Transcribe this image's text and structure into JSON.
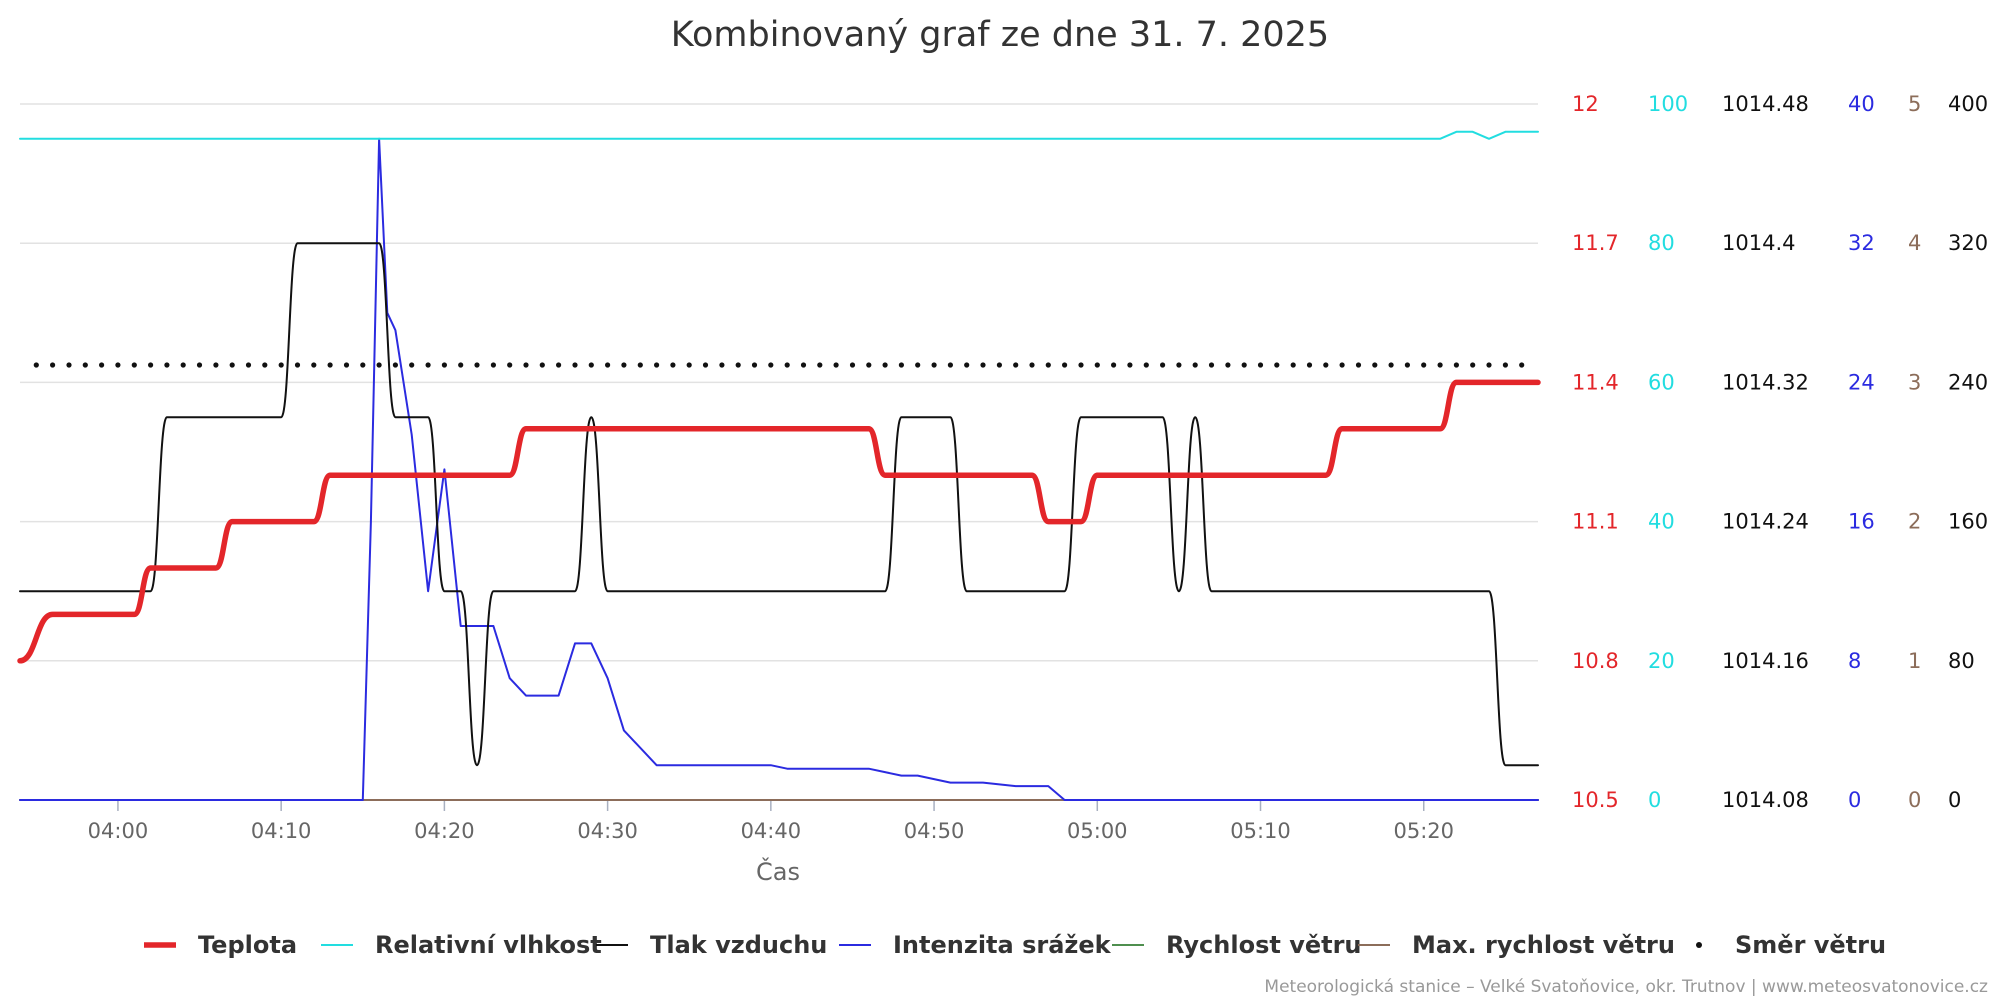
{
  "chart_data": {
    "type": "line",
    "title": "Kombinovaný graf ze dne 31. 7. 2025",
    "xlabel": "Čas",
    "x_ticks": [
      "04:00",
      "04:10",
      "04:20",
      "04:30",
      "04:40",
      "04:50",
      "05:00",
      "05:10",
      "05:20"
    ],
    "x_range_minutes": [
      234,
      327
    ],
    "grid": true,
    "legend_position": "bottom",
    "credits": "Meteorologická stanice – Velké Svatoňovice, okr. Trutnov | www.meteosvatonovice.cz",
    "axes": [
      {
        "name": "temperature",
        "color": "#e3262a",
        "range": [
          10.5,
          12
        ],
        "ticks": [
          "10.5",
          "10.8",
          "11.1",
          "11.4",
          "11.7",
          "12"
        ]
      },
      {
        "name": "humidity",
        "color": "#22dde0",
        "range": [
          0,
          100
        ],
        "ticks": [
          "0",
          "20",
          "40",
          "60",
          "80",
          "100"
        ]
      },
      {
        "name": "pressure",
        "color": "#111111",
        "range": [
          1014.08,
          1014.48
        ],
        "ticks": [
          "1014.08",
          "1014.16",
          "1014.24",
          "1014.32",
          "1014.4",
          "1014.48"
        ]
      },
      {
        "name": "rain",
        "color": "#2b2be0",
        "range": [
          0,
          40
        ],
        "ticks": [
          "0",
          "8",
          "16",
          "24",
          "32",
          "40"
        ]
      },
      {
        "name": "wind",
        "color": "#8c6d5a",
        "range": [
          0,
          5
        ],
        "ticks": [
          "0",
          "1",
          "2",
          "3",
          "4",
          "5"
        ]
      },
      {
        "name": "direction",
        "color": "#111111",
        "range": [
          0,
          400
        ],
        "ticks": [
          "0",
          "80",
          "160",
          "240",
          "320",
          "400"
        ]
      }
    ],
    "series": [
      {
        "name": "Teplota",
        "color": "#e3262a",
        "axis": 0,
        "width": 5.5,
        "step": true,
        "x": [
          "03:54",
          "03:56",
          "04:01",
          "04:02",
          "04:06",
          "04:07",
          "04:12",
          "04:13",
          "04:24",
          "04:25",
          "04:46",
          "04:47",
          "04:56",
          "04:57",
          "04:59",
          "05:00",
          "05:14",
          "05:15",
          "05:21",
          "05:22",
          "05:27"
        ],
        "y": [
          10.8,
          10.9,
          10.9,
          11.0,
          11.0,
          11.1,
          11.1,
          11.2,
          11.2,
          11.3,
          11.3,
          11.2,
          11.2,
          11.1,
          11.1,
          11.2,
          11.2,
          11.3,
          11.3,
          11.4,
          11.4
        ]
      },
      {
        "name": "Relativní vlhkost",
        "color": "#22dde0",
        "axis": 1,
        "width": 2,
        "step": false,
        "x": [
          "03:54",
          "05:21",
          "05:22",
          "05:23",
          "05:24",
          "05:25",
          "05:27"
        ],
        "y": [
          95,
          95,
          96,
          96,
          95,
          96,
          96
        ]
      },
      {
        "name": "Tlak vzduchu",
        "color": "#111111",
        "axis": 2,
        "width": 2,
        "step": true,
        "x": [
          "03:54",
          "04:02",
          "04:03",
          "04:10",
          "04:11",
          "04:16",
          "04:17",
          "04:19",
          "04:20",
          "04:21",
          "04:22",
          "04:23",
          "04:28",
          "04:29",
          "04:30",
          "04:47",
          "04:48",
          "04:51",
          "04:52",
          "04:58",
          "04:59",
          "05:04",
          "05:05",
          "05:06",
          "05:07",
          "05:24",
          "05:25",
          "05:27"
        ],
        "y": [
          1014.2,
          1014.2,
          1014.3,
          1014.3,
          1014.4,
          1014.4,
          1014.3,
          1014.3,
          1014.2,
          1014.2,
          1014.1,
          1014.2,
          1014.2,
          1014.3,
          1014.2,
          1014.2,
          1014.3,
          1014.3,
          1014.2,
          1014.2,
          1014.3,
          1014.3,
          1014.2,
          1014.3,
          1014.2,
          1014.2,
          1014.1,
          1014.1
        ]
      },
      {
        "name": "Intenzita srážek",
        "color": "#2b2be0",
        "axis": 3,
        "width": 2,
        "step": false,
        "x": [
          "03:54",
          "04:15",
          "04:15.5",
          "04:16",
          "04:16.5",
          "04:17",
          "04:18",
          "04:19",
          "04:20",
          "04:21",
          "04:22",
          "04:23",
          "04:24",
          "04:25",
          "04:27",
          "04:28",
          "04:29",
          "04:30",
          "04:31",
          "04:33",
          "04:35",
          "04:40",
          "04:41",
          "04:46",
          "04:48",
          "04:49",
          "04:51",
          "04:53",
          "04:55",
          "04:57",
          "04:58",
          "05:27"
        ],
        "y": [
          0,
          0,
          16,
          38,
          28,
          27,
          21,
          12,
          19,
          10,
          10,
          10,
          7,
          6,
          6,
          9,
          9,
          7,
          4,
          2,
          2,
          2,
          1.8,
          1.8,
          1.4,
          1.4,
          1,
          1,
          0.8,
          0.8,
          0,
          0
        ]
      },
      {
        "name": "Rychlost větru",
        "color": "#4f8f4f",
        "axis": 4,
        "width": 2,
        "step": false,
        "x": [
          "03:54",
          "05:27"
        ],
        "y": [
          0,
          0
        ]
      },
      {
        "name": "Max. rychlost větru",
        "color": "#8c6d5a",
        "axis": 4,
        "width": 2,
        "step": false,
        "x": [
          "03:54",
          "05:27"
        ],
        "y": [
          0,
          0
        ]
      },
      {
        "name": "Směr větru",
        "color": "#111111",
        "axis": 5,
        "type": "scatter",
        "marker": "dot",
        "x_start": "03:55",
        "x_end": "05:26",
        "x_every_minutes": 1,
        "y_constant": 250
      }
    ],
    "legend": [
      {
        "label": "Teplota",
        "symbol": "line",
        "color": "#e3262a"
      },
      {
        "label": "Relativní vlhkost",
        "symbol": "line",
        "color": "#22dde0"
      },
      {
        "label": "Tlak vzduchu",
        "symbol": "line",
        "color": "#111111"
      },
      {
        "label": "Intenzita srážek",
        "symbol": "line",
        "color": "#2b2be0"
      },
      {
        "label": "Rychlost větru",
        "symbol": "line",
        "color": "#4f8f4f"
      },
      {
        "label": "Max. rychlost větru",
        "symbol": "line",
        "color": "#8c6d5a"
      },
      {
        "label": "Směr větru",
        "symbol": "dot",
        "color": "#111111"
      }
    ]
  }
}
